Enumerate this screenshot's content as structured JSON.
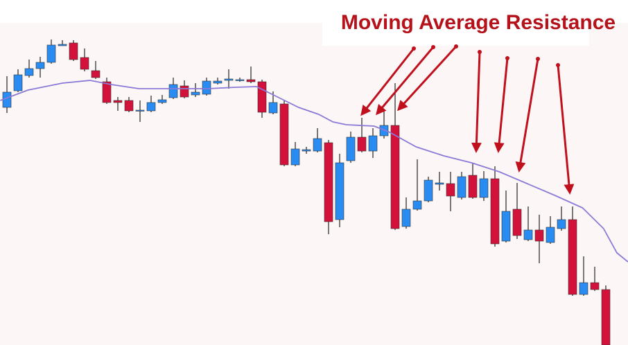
{
  "chart_data": {
    "type": "candlestick",
    "title": "Moving Average Resistance",
    "x": [
      1,
      2,
      3,
      4,
      5,
      6,
      7,
      8,
      9,
      10,
      11,
      12,
      13,
      14,
      15,
      16,
      17,
      18,
      19,
      20,
      21,
      22,
      23,
      24,
      25,
      26,
      27,
      28,
      29,
      30,
      31,
      32,
      33,
      34,
      35,
      36,
      37,
      38,
      39,
      40,
      41,
      42,
      43,
      44,
      45,
      46,
      47,
      48,
      49,
      50,
      51,
      52,
      53,
      54,
      55
    ],
    "open": [
      343,
      367,
      389,
      399,
      408,
      432,
      436,
      415,
      396,
      380,
      353,
      353,
      338,
      338,
      350,
      357,
      374,
      361,
      362,
      378,
      382,
      382,
      383,
      380,
      335,
      348,
      260,
      280,
      280,
      292,
      181,
      266,
      300,
      280,
      302,
      317,
      171,
      196,
      208,
      232,
      233,
      213,
      245,
      213,
      240,
      150,
      196,
      152,
      166,
      148,
      168,
      181,
      73,
      90,
      80
    ],
    "high": [
      388,
      398,
      412,
      416,
      441,
      440,
      440,
      428,
      410,
      386,
      358,
      358,
      353,
      360,
      361,
      386,
      382,
      378,
      386,
      386,
      398,
      386,
      402,
      383,
      366,
      353,
      293,
      286,
      313,
      296,
      276,
      308,
      328,
      313,
      338,
      378,
      213,
      268,
      243,
      250,
      250,
      250,
      262,
      251,
      258,
      223,
      234,
      200,
      188,
      186,
      200,
      200,
      128,
      113,
      86
    ],
    "low": [
      335,
      365,
      386,
      386,
      406,
      432,
      410,
      395,
      384,
      348,
      338,
      336,
      322,
      336,
      348,
      355,
      356,
      358,
      360,
      376,
      370,
      380,
      378,
      328,
      333,
      258,
      258,
      276,
      278,
      160,
      170,
      263,
      278,
      270,
      298,
      166,
      168,
      194,
      206,
      223,
      193,
      210,
      211,
      208,
      142,
      148,
      153,
      150,
      118,
      146,
      165,
      71,
      71,
      78,
      0
    ],
    "close": [
      365,
      390,
      399,
      408,
      433,
      434,
      412,
      398,
      386,
      350,
      350,
      338,
      339,
      350,
      354,
      376,
      358,
      365,
      381,
      381,
      384,
      383,
      380,
      336,
      350,
      260,
      283,
      282,
      298,
      178,
      263,
      300,
      280,
      302,
      317,
      168,
      196,
      208,
      238,
      234,
      215,
      243,
      213,
      240,
      146,
      193,
      158,
      166,
      150,
      170,
      181,
      73,
      90,
      80,
      0
    ],
    "up_color": "#2a8cf0",
    "down_color": "#d3123c",
    "moving_average": {
      "color": "#8a7ad8",
      "x": [
        0.4,
        2.9,
        6,
        8.5,
        10.4,
        12.9,
        16,
        19.1,
        21.6,
        23.5,
        25.4,
        27.3,
        29.1,
        30.4,
        31.6,
        34.1,
        35.4,
        37.9,
        40.4,
        42.9,
        45.4,
        47.9,
        50.4,
        52.9,
        54.8,
        56,
        57
      ],
      "values": [
        353,
        368,
        378,
        382,
        376,
        370,
        370,
        370,
        372,
        373,
        358,
        343,
        333,
        322,
        318,
        316,
        308,
        286,
        273,
        263,
        250,
        233,
        216,
        198,
        168,
        133,
        120
      ]
    },
    "xlim": [
      0.375,
      57
    ],
    "ylim": [
      0,
      498
    ]
  }
}
